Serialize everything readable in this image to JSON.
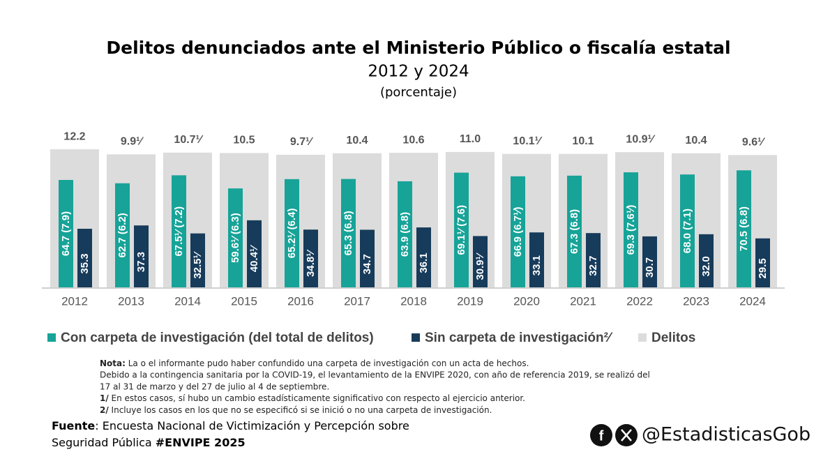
{
  "chart_data": {
    "type": "grouped_bar",
    "title": "Delitos denunciados ante el Ministerio Público o fiscalía estatal",
    "subtitle": "2012 y 2024",
    "unit_label": "(porcentaje)",
    "categories": [
      "2012",
      "2013",
      "2014",
      "2015",
      "2016",
      "2017",
      "2018",
      "2019",
      "2020",
      "2021",
      "2022",
      "2023",
      "2024"
    ],
    "ylim": [
      0,
      100
    ],
    "y2lim": [
      -51,
      25
    ],
    "series": [
      {
        "name": "Con carpeta de investigación (del total de delitos)",
        "color": "#17a398",
        "values": [
          64.7,
          62.7,
          67.5,
          59.6,
          65.2,
          65.3,
          63.9,
          69.1,
          66.9,
          67.3,
          69.3,
          68.0,
          70.5
        ],
        "value_labels": [
          "64.7 (7.9)",
          "62.7 (6.2)",
          "67.5¹⁄ (7.2)",
          "59.6¹⁄ (6.3)",
          "65.2¹⁄ (6.4)",
          "65.3 (6.8)",
          "63.9 (6.8)",
          "69.1¹⁄ (7.6)",
          "66.9 (6.7¹⁄)",
          "67.3 (6.8)",
          "69.3 (7.6¹⁄)",
          "68.0 (7.1)",
          "70.5 (6.8)"
        ]
      },
      {
        "name": "Sin carpeta de investigación²⁄",
        "color": "#173b5a",
        "values": [
          35.3,
          37.3,
          32.5,
          40.4,
          34.8,
          34.7,
          36.1,
          30.9,
          33.1,
          32.7,
          30.7,
          32.0,
          29.5
        ],
        "value_labels": [
          "35.3",
          "37.3",
          "32.5¹⁄",
          "40.4¹⁄",
          "34.8¹⁄",
          "34.7",
          "36.1",
          "30.9¹⁄",
          "33.1",
          "32.7",
          "30.7",
          "32.0",
          "29.5"
        ]
      },
      {
        "name": "Delitos",
        "color": "#dcdcdc",
        "axis": "y2",
        "values": [
          12.2,
          9.9,
          10.7,
          10.5,
          9.7,
          10.4,
          10.6,
          11.0,
          10.1,
          10.1,
          10.9,
          10.4,
          9.6
        ],
        "value_labels": [
          "12.2",
          "9.9¹⁄",
          "10.7¹⁄",
          "10.5",
          "9.7¹⁄",
          "10.4",
          "10.6",
          "11.0",
          "10.1¹⁄",
          "10.1",
          "10.9¹⁄",
          "10.4",
          "9.6¹⁄"
        ]
      }
    ]
  },
  "notes": [
    {
      "label": "Nota:",
      "text": " La o el informante pudo haber confundido una carpeta de investigación con un acta de hechos."
    },
    {
      "text": "Debido a la contingencia sanitaria por la COVID-19, el levantamiento de la ENVIPE 2020, con año de referencia 2019, se realizó del"
    },
    {
      "text": "17 al 31 de marzo y del 27 de julio al 4 de septiembre."
    },
    {
      "label": "1/",
      "text": " En estos casos, sí hubo un cambio estadísticamente significativo con respecto al ejercicio anterior."
    },
    {
      "label": "2/",
      "text": " Incluye los casos en los que no se especificó si se inició o no una carpeta de investigación."
    }
  ],
  "source": {
    "label": "Fuente",
    "line1": ": Encuesta Nacional de Victimización y Percepción sobre",
    "line2": "Seguridad Pública ",
    "tag": "#ENVIPE 2025"
  },
  "handle": "@EstadisticasGob"
}
